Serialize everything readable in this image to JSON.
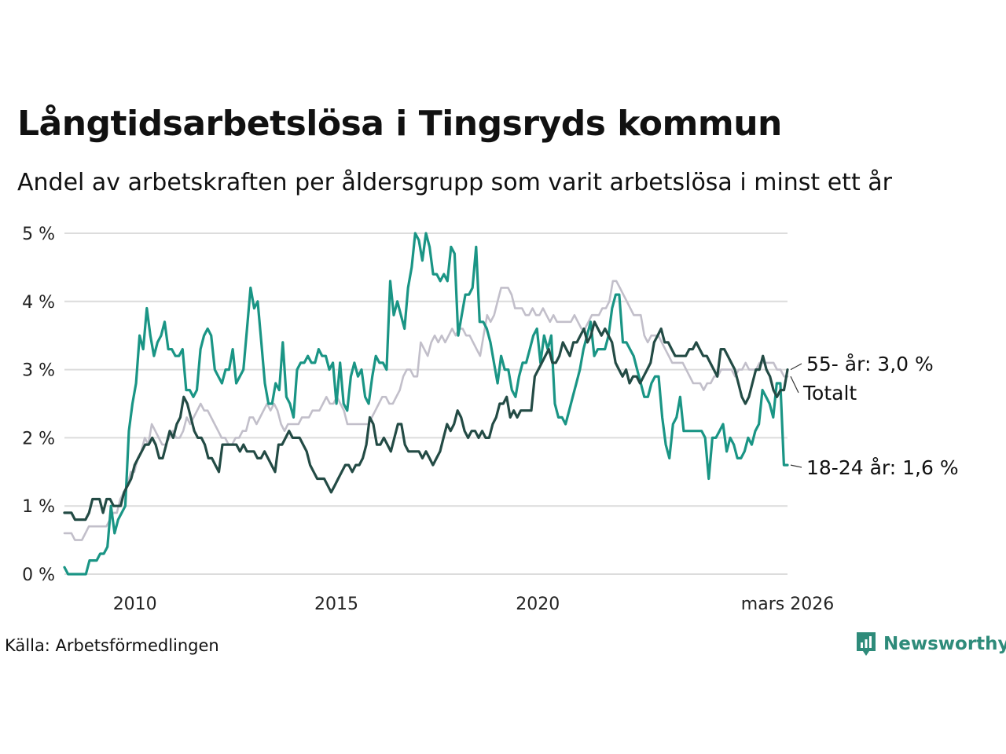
{
  "header": {
    "title": "Långtidsarbetslösa i Tingsryds kommun",
    "subtitle": "Andel av arbetskraften per åldersgrupp som varit arbetslösa i minst ett år"
  },
  "footer": {
    "source": "Källa: Arbetsförmedlingen",
    "brand": "Newsworthy"
  },
  "colors": {
    "total": "#c2bfca",
    "young": "#1a9585",
    "old": "#234b45",
    "grid": "#dcdcdc"
  },
  "chart_data": {
    "type": "line",
    "title": "Långtidsarbetslösa i Tingsryds kommun",
    "subtitle": "Andel av arbetskraften per åldersgrupp som varit arbetslösa i minst ett år",
    "xlabel": "",
    "ylabel": "",
    "x_start": 2008.25,
    "x_end": 2026.2,
    "xlim": [
      2008.25,
      2026.2
    ],
    "ylim": [
      0,
      5
    ],
    "x_ticks": [
      {
        "value": 2010,
        "label": "2010"
      },
      {
        "value": 2015,
        "label": "2015"
      },
      {
        "value": 2020,
        "label": "2020"
      },
      {
        "value": 2026.2,
        "label": "mars 2026"
      }
    ],
    "y_ticks": [
      {
        "value": 0,
        "label": "0 %"
      },
      {
        "value": 1,
        "label": "1 %"
      },
      {
        "value": 2,
        "label": "2 %"
      },
      {
        "value": 3,
        "label": "3 %"
      },
      {
        "value": 4,
        "label": "4 %"
      },
      {
        "value": 5,
        "label": "5 %"
      }
    ],
    "grid": true,
    "series": [
      {
        "name": "Totalt",
        "key": "total",
        "end_label": "Totalt",
        "values": [
          0.6,
          0.6,
          0.6,
          0.5,
          0.5,
          0.5,
          0.6,
          0.7,
          0.7,
          0.7,
          0.7,
          0.7,
          0.7,
          0.8,
          0.9,
          0.9,
          1.1,
          1.2,
          1.3,
          1.5,
          1.5,
          1.7,
          1.8,
          2.0,
          1.9,
          2.2,
          2.1,
          2.0,
          1.9,
          1.9,
          2.0,
          2.1,
          2.0,
          2.0,
          2.1,
          2.3,
          2.2,
          2.3,
          2.4,
          2.5,
          2.4,
          2.4,
          2.3,
          2.2,
          2.1,
          2.0,
          2.0,
          1.9,
          1.9,
          2.0,
          2.0,
          2.1,
          2.1,
          2.3,
          2.3,
          2.2,
          2.3,
          2.4,
          2.5,
          2.4,
          2.5,
          2.4,
          2.2,
          2.1,
          2.2,
          2.2,
          2.2,
          2.2,
          2.3,
          2.3,
          2.3,
          2.4,
          2.4,
          2.4,
          2.5,
          2.6,
          2.5,
          2.5,
          2.6,
          2.5,
          2.4,
          2.2,
          2.2,
          2.2,
          2.2,
          2.2,
          2.2,
          2.2,
          2.3,
          2.4,
          2.5,
          2.6,
          2.6,
          2.5,
          2.5,
          2.6,
          2.7,
          2.9,
          3.0,
          3.0,
          2.9,
          2.9,
          3.4,
          3.3,
          3.2,
          3.4,
          3.5,
          3.4,
          3.5,
          3.4,
          3.5,
          3.6,
          3.5,
          3.6,
          3.6,
          3.5,
          3.5,
          3.4,
          3.3,
          3.2,
          3.5,
          3.8,
          3.7,
          3.8,
          4.0,
          4.2,
          4.2,
          4.2,
          4.1,
          3.9,
          3.9,
          3.9,
          3.8,
          3.8,
          3.9,
          3.8,
          3.8,
          3.9,
          3.8,
          3.7,
          3.8,
          3.7,
          3.7,
          3.7,
          3.7,
          3.7,
          3.8,
          3.7,
          3.6,
          3.6,
          3.7,
          3.8,
          3.8,
          3.8,
          3.9,
          3.9,
          4.0,
          4.3,
          4.3,
          4.2,
          4.1,
          4.0,
          3.9,
          3.8,
          3.8,
          3.8,
          3.5,
          3.4,
          3.5,
          3.5,
          3.5,
          3.4,
          3.3,
          3.2,
          3.1,
          3.1,
          3.1,
          3.1,
          3.0,
          2.9,
          2.8,
          2.8,
          2.8,
          2.7,
          2.8,
          2.8,
          2.9,
          2.9,
          3.0,
          3.0,
          3.0,
          3.0,
          2.9,
          3.0,
          3.0,
          3.1,
          3.0,
          3.0,
          3.0,
          3.1,
          3.1,
          3.1,
          3.1,
          3.1,
          3.0,
          3.0,
          2.9,
          2.9
        ]
      },
      {
        "name": "18-24 år",
        "key": "young",
        "end_label": "18-24 år: 1,6 %",
        "values": [
          0.1,
          0.0,
          0.0,
          0.0,
          0.0,
          0.0,
          0.0,
          0.2,
          0.2,
          0.2,
          0.3,
          0.3,
          0.4,
          1.0,
          0.6,
          0.8,
          0.9,
          1.0,
          2.1,
          2.5,
          2.8,
          3.5,
          3.3,
          3.9,
          3.5,
          3.2,
          3.4,
          3.5,
          3.7,
          3.3,
          3.3,
          3.2,
          3.2,
          3.3,
          2.7,
          2.7,
          2.6,
          2.7,
          3.3,
          3.5,
          3.6,
          3.5,
          3.0,
          2.9,
          2.8,
          3.0,
          3.0,
          3.3,
          2.8,
          2.9,
          3.0,
          3.6,
          4.2,
          3.9,
          4.0,
          3.4,
          2.8,
          2.5,
          2.5,
          2.8,
          2.7,
          3.4,
          2.6,
          2.5,
          2.3,
          3.0,
          3.1,
          3.1,
          3.2,
          3.1,
          3.1,
          3.3,
          3.2,
          3.2,
          3.0,
          3.1,
          2.5,
          3.1,
          2.5,
          2.4,
          2.9,
          3.1,
          2.9,
          3.0,
          2.6,
          2.5,
          2.9,
          3.2,
          3.1,
          3.1,
          3.0,
          4.3,
          3.8,
          4.0,
          3.8,
          3.6,
          4.2,
          4.5,
          5.0,
          4.9,
          4.6,
          5.0,
          4.8,
          4.4,
          4.4,
          4.3,
          4.4,
          4.3,
          4.8,
          4.7,
          3.5,
          3.8,
          4.1,
          4.1,
          4.2,
          4.8,
          3.7,
          3.7,
          3.6,
          3.4,
          3.1,
          2.8,
          3.2,
          3.0,
          3.0,
          2.7,
          2.6,
          2.9,
          3.1,
          3.1,
          3.3,
          3.5,
          3.6,
          3.1,
          3.5,
          3.3,
          3.5,
          2.5,
          2.3,
          2.3,
          2.2,
          2.4,
          2.6,
          2.8,
          3.0,
          3.3,
          3.5,
          3.7,
          3.2,
          3.3,
          3.3,
          3.3,
          3.5,
          3.9,
          4.1,
          4.1,
          3.4,
          3.4,
          3.3,
          3.2,
          3.0,
          2.8,
          2.6,
          2.6,
          2.8,
          2.9,
          2.9,
          2.3,
          1.9,
          1.7,
          2.2,
          2.3,
          2.6,
          2.1,
          2.1,
          2.1,
          2.1,
          2.1,
          2.1,
          2.0,
          1.4,
          2.0,
          2.0,
          2.1,
          2.2,
          1.8,
          2.0,
          1.9,
          1.7,
          1.7,
          1.8,
          2.0,
          1.9,
          2.1,
          2.2,
          2.7,
          2.6,
          2.5,
          2.3,
          2.8,
          2.8,
          1.6,
          1.6
        ]
      },
      {
        "name": "55- år",
        "key": "old",
        "end_label": "55- år: 3,0 %",
        "values": [
          0.9,
          0.9,
          0.9,
          0.8,
          0.8,
          0.8,
          0.8,
          0.9,
          1.1,
          1.1,
          1.1,
          0.9,
          1.1,
          1.1,
          1.0,
          1.0,
          1.0,
          1.2,
          1.3,
          1.4,
          1.6,
          1.7,
          1.8,
          1.9,
          1.9,
          2.0,
          1.9,
          1.7,
          1.7,
          1.9,
          2.1,
          2.0,
          2.2,
          2.3,
          2.6,
          2.5,
          2.3,
          2.1,
          2.0,
          2.0,
          1.9,
          1.7,
          1.7,
          1.6,
          1.5,
          1.9,
          1.9,
          1.9,
          1.9,
          1.9,
          1.8,
          1.9,
          1.8,
          1.8,
          1.8,
          1.7,
          1.7,
          1.8,
          1.7,
          1.6,
          1.5,
          1.9,
          1.9,
          2.0,
          2.1,
          2.0,
          2.0,
          2.0,
          1.9,
          1.8,
          1.6,
          1.5,
          1.4,
          1.4,
          1.4,
          1.3,
          1.2,
          1.3,
          1.4,
          1.5,
          1.6,
          1.6,
          1.5,
          1.6,
          1.6,
          1.7,
          1.9,
          2.3,
          2.2,
          1.9,
          1.9,
          2.0,
          1.9,
          1.8,
          2.0,
          2.2,
          2.2,
          1.9,
          1.8,
          1.8,
          1.8,
          1.8,
          1.7,
          1.8,
          1.7,
          1.6,
          1.7,
          1.8,
          2.0,
          2.2,
          2.1,
          2.2,
          2.4,
          2.3,
          2.1,
          2.0,
          2.1,
          2.1,
          2.0,
          2.1,
          2.0,
          2.0,
          2.2,
          2.3,
          2.5,
          2.5,
          2.6,
          2.3,
          2.4,
          2.3,
          2.4,
          2.4,
          2.4,
          2.4,
          2.9,
          3.0,
          3.1,
          3.2,
          3.3,
          3.1,
          3.1,
          3.2,
          3.4,
          3.3,
          3.2,
          3.4,
          3.4,
          3.5,
          3.6,
          3.4,
          3.5,
          3.7,
          3.6,
          3.5,
          3.6,
          3.5,
          3.4,
          3.1,
          3.0,
          2.9,
          3.0,
          2.8,
          2.9,
          2.9,
          2.8,
          2.9,
          3.0,
          3.1,
          3.4,
          3.5,
          3.6,
          3.4,
          3.4,
          3.3,
          3.2,
          3.2,
          3.2,
          3.2,
          3.3,
          3.3,
          3.4,
          3.3,
          3.2,
          3.2,
          3.1,
          3.0,
          2.9,
          3.3,
          3.3,
          3.2,
          3.1,
          3.0,
          2.8,
          2.6,
          2.5,
          2.6,
          2.8,
          3.0,
          3.0,
          3.2,
          3.0,
          2.9,
          2.7,
          2.6,
          2.7,
          2.7,
          3.0
        ]
      }
    ]
  }
}
